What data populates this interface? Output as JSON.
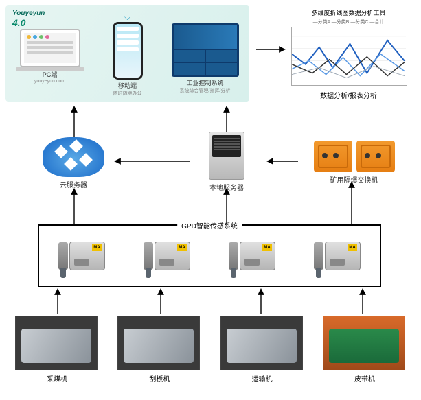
{
  "app_group": {
    "brand_line1": "Youyeyun",
    "brand_line2": "4.0",
    "pc": {
      "caption": "PC端",
      "sub": "youyeyun.com",
      "dot_colors": [
        "#f0b93a",
        "#4aa8e0",
        "#6ac06a",
        "#e06a9a"
      ]
    },
    "mobile": {
      "caption": "移动端",
      "sub": "随时随地办公",
      "wifi_glyph": "⌵"
    },
    "dashboard": {
      "caption": "工业控制系统",
      "sub": "系统综合管理/指挥/分析"
    }
  },
  "chart": {
    "title": "多维度折线图数据分析工具",
    "legend": "—分类A  —分类B  —分类C  —合计",
    "bottom_label": "数据分析/报表分析",
    "series": [
      {
        "color": "#1f5fbf",
        "width": 2,
        "points": [
          [
            0,
            40
          ],
          [
            20,
            55
          ],
          [
            40,
            30
          ],
          [
            60,
            60
          ],
          [
            85,
            25
          ],
          [
            110,
            68
          ],
          [
            140,
            20
          ],
          [
            165,
            50
          ]
        ]
      },
      {
        "color": "#5a9ae6",
        "width": 1.5,
        "points": [
          [
            0,
            62
          ],
          [
            25,
            50
          ],
          [
            50,
            70
          ],
          [
            75,
            45
          ],
          [
            100,
            72
          ],
          [
            130,
            40
          ],
          [
            165,
            65
          ]
        ]
      },
      {
        "color": "#333333",
        "width": 1.5,
        "points": [
          [
            0,
            55
          ],
          [
            30,
            68
          ],
          [
            55,
            48
          ],
          [
            80,
            70
          ],
          [
            110,
            44
          ],
          [
            140,
            72
          ],
          [
            165,
            52
          ]
        ]
      },
      {
        "color": "#9aa6b2",
        "width": 1,
        "points": [
          [
            0,
            70
          ],
          [
            40,
            60
          ],
          [
            80,
            75
          ],
          [
            120,
            58
          ],
          [
            165,
            72
          ]
        ]
      }
    ],
    "ylim": [
      0,
      86
    ],
    "grid_color": "#e2e2e2"
  },
  "middle": {
    "cloud": {
      "label": "云服务器"
    },
    "server": {
      "label": "本地服务器"
    },
    "switch": {
      "label": "矿用隔爆交换机"
    }
  },
  "sensor_system": {
    "title": "GPD智能传感系统",
    "unit_count": 4
  },
  "equipment": [
    {
      "label": "采煤机"
    },
    {
      "label": "刮板机"
    },
    {
      "label": "运输机"
    },
    {
      "label": "皮带机"
    }
  ],
  "arrows": {
    "color": "#000000",
    "stroke": 1.4,
    "paths": [
      "M 108 200 L 108 156",
      "M 330 192 L 330 156",
      "M 373 72 L 414 72",
      "M 277 235 L 168 235",
      "M 434 235 L 390 235",
      "M 108 327 L 108 276",
      "M 330 327 L 330 276",
      "M 512 327 L 512 266",
      "M 84 458 L 84 422",
      "M 234 458 L 234 422",
      "M 380 458 L 380 422",
      "M 528 458 L 528 422"
    ]
  }
}
